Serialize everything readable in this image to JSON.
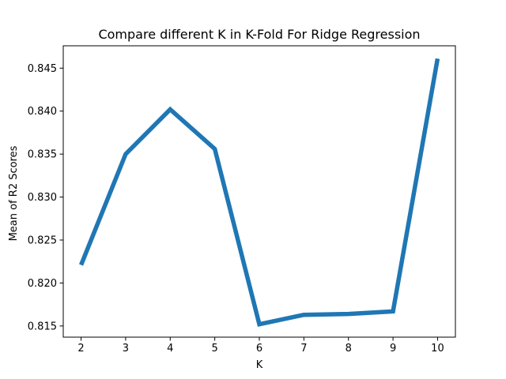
{
  "chart_data": {
    "type": "line",
    "title": "Compare different K in K-Fold For Ridge Regression",
    "xlabel": "K",
    "ylabel": "Mean of R2 Scores",
    "x": [
      2,
      3,
      4,
      5,
      6,
      7,
      8,
      9,
      10
    ],
    "series": [
      {
        "values": [
          0.8221,
          0.835,
          0.8402,
          0.8356,
          0.8152,
          0.8163,
          0.8164,
          0.8167,
          0.8461
        ]
      }
    ],
    "xlim": [
      1.6,
      10.4
    ],
    "ylim": [
      0.8137,
      0.8476
    ],
    "xticks": [
      "2",
      "3",
      "4",
      "5",
      "6",
      "7",
      "8",
      "9",
      "10"
    ],
    "yticks": [
      "0.815",
      "0.820",
      "0.825",
      "0.830",
      "0.835",
      "0.840",
      "0.845"
    ],
    "grid": false,
    "line_color": "#1f77b4"
  }
}
